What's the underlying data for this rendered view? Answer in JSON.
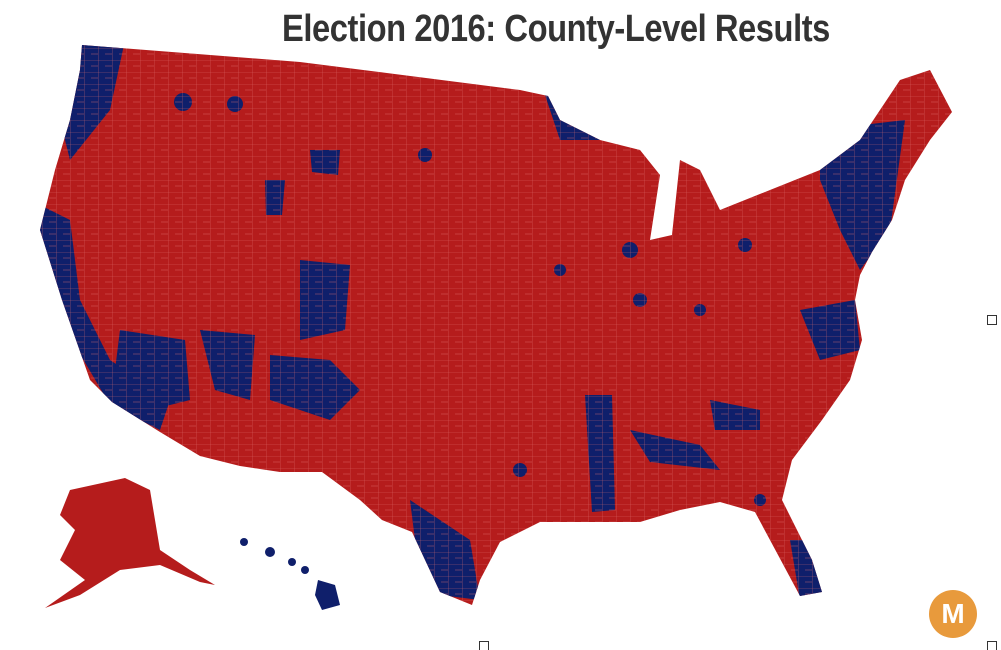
{
  "title": "Election 2016: County-Level Results",
  "logo": "M"
}
